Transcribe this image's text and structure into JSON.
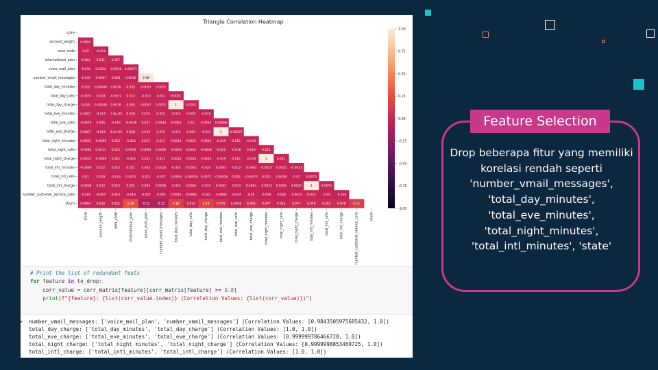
{
  "heatmap": {
    "title": "Triangle Correlation Heatmap",
    "labels": [
      "state",
      "account_length",
      "area_code",
      "international_plan",
      "voice_mail_plan",
      "number_vmail_messages",
      "total_day_minutes",
      "total_day_calls",
      "total_day_charge",
      "total_eve_minutes",
      "total_eve_calls",
      "total_eve_charge",
      "total_night_minutes",
      "total_night_calls",
      "total_night_charge",
      "total_intl_minutes",
      "total_intl_calls",
      "total_intl_charge",
      "number_customer_service_calls",
      "churn"
    ],
    "rows": [
      [],
      [
        "0.0091"
      ],
      [
        "0.02",
        "-0.024"
      ],
      [
        "0.004",
        "0.031",
        "0.027"
      ],
      [
        "-0.034",
        "0.0024",
        "-0.0016",
        "0.00071"
      ],
      [
        "-0.032",
        "-0.0027",
        "-0.001",
        "0.0032",
        "0.98"
      ],
      [
        "0.015",
        "0.00049",
        "0.0076",
        "0.035",
        "0.0057",
        "0.0071"
      ],
      [
        "-0.0074",
        "0.019",
        "-0.0072",
        "0.012",
        "-0.013",
        "-0.011",
        "0.0031"
      ],
      [
        "0.015",
        "0.00049",
        "0.0076",
        "0.035",
        "0.0057",
        "0.0071",
        "1",
        "0.0031"
      ],
      [
        "0.0067",
        "-0.014",
        "-7.8e-05",
        "0.018",
        "0.015",
        "0.015",
        "-0.015",
        "0.009",
        "-0.015"
      ],
      [
        "-0.0079",
        "0.005",
        "-0.016",
        "-0.0038",
        "0.017",
        "0.0042",
        "0.0054",
        "0.01",
        "0.0054",
        "0.00066"
      ],
      [
        "0.0067",
        "-0.014",
        "-8.4e-05",
        "0.018",
        "0.015",
        "0.015",
        "-0.015",
        "0.009",
        "-0.015",
        "1",
        "0.00067"
      ],
      [
        "0.0055",
        "-0.0069",
        "0.022",
        "-0.024",
        "0.011",
        "0.011",
        "0.0024",
        "0.0025",
        "0.0024",
        "-0.019",
        "0.012",
        "-0.019"
      ],
      [
        "-0.0083",
        "0.0011",
        "0.022",
        "0.0055",
        "0.0093",
        "0.0059",
        "-0.0044",
        "0.0031",
        "-0.0044",
        "0.013",
        "-0.016",
        "0.013",
        "0.011"
      ],
      [
        "0.0055",
        "-0.0069",
        "0.021",
        "-0.024",
        "0.011",
        "0.011",
        "0.0024",
        "0.0024",
        "0.0024",
        "-0.019",
        "0.012",
        "-0.019",
        "1",
        "0.011"
      ],
      [
        "-0.0066",
        "0.012",
        "0.015",
        "0.021",
        "0.003",
        "0.0016",
        "-0.024",
        "0.0062",
        "-0.024",
        "0.0063",
        "-0.022",
        "0.0063",
        "-0.0023",
        "0.0055",
        "-0.0023"
      ],
      [
        "0.01",
        "0.019",
        "-0.016",
        "0.0031",
        "-0.011",
        "-0.027",
        "-0.0054",
        "-0.00026",
        "0.0077",
        "-0.00026",
        "0.015",
        "-0.00072",
        "0.015",
        "0.0038",
        "-0.02",
        "0.0073"
      ],
      [
        "-0.0068",
        "0.012",
        "0.015",
        "0.021",
        "0.003",
        "0.0016",
        "-0.024",
        "0.0062",
        "-0.024",
        "0.0063",
        "-0.022",
        "0.0063",
        "-0.0023",
        "0.0055",
        "0.0023",
        "1",
        "0.0073"
      ],
      [
        "-0.015",
        "-0.007",
        "0.013",
        "-0.016",
        "-0.027",
        "-0.024",
        "0.0054",
        "-0.0065",
        "-0.021",
        "-0.0065",
        "-0.014",
        "0.01",
        "-0.014",
        "-0.023",
        "-0.0013",
        "0.023",
        "-0.01",
        "-0.018"
      ],
      [
        "0.0064",
        "0.016",
        "0.011",
        "0.26",
        "-0.11",
        "-0.11",
        "0.18",
        "0.014",
        "0.18",
        "0.075",
        "0.0088",
        "0.075",
        "0.047",
        "0.013",
        "0.047",
        "0.048",
        "0.053",
        "0.048",
        "0.15"
      ]
    ],
    "colorbar_ticks": [
      "1.00",
      "0.75",
      "0.50",
      "0.25",
      "0.00",
      "-0.25",
      "-0.50",
      "-0.75",
      "-1.00"
    ]
  },
  "code": {
    "comment": "# Print the list of redundant feats",
    "line2_kw1": "for",
    "line2_var": " feature ",
    "line2_kw2": "in",
    "line2_rest": " to_drop:",
    "line3_a": "    corr_value = corr_matrix[feature][corr_matrix[feature] ",
    "line3_op": ">=",
    "line3_num": " 0.8",
    "line3_end": "]",
    "line4_fn": "    print",
    "line4_a": "(",
    "line4_str": "f\"{feature}: {list(corr_value.index)} (Correlation Values: {list(corr_value)})\"",
    "line4_end": ")"
  },
  "output": [
    "number_vmail_messages: ['voice_mail_plan', 'number_vmail_messages'] (Correlation Values: [0.9843505975685432, 1.0])",
    "total_day_charge: ['total_day_minutes', 'total_day_charge'] (Correlation Values: [1.0, 1.0])",
    "total_eve_charge: ['total_eve_minutes', 'total_eve_charge'] (Correlation Values: [0.999999786466728, 1.0])",
    "total_night_charge: ['total_night_minutes', 'total_night_charge'] (Correlation Values: [0.9999998853469725, 1.0])",
    "total_intl_charge: ['total_intl_minutes', 'total_intl_charge'] (Correlation Values: [1.0, 1.0])"
  ],
  "sidebar": {
    "badge": "Feature Selection",
    "text": "Drop beberapa fitur yang memiliki korelasi rendah seperti 'number_vmail_messages', 'total_day_minutes', 'total_eve_minutes', 'total_night_minutes', 'total_intl_minutes', 'state'"
  },
  "colors": {
    "background": "#0c2740",
    "accent": "#c8398b",
    "teal": "#19c4c8",
    "orange": "#e88a5a"
  }
}
